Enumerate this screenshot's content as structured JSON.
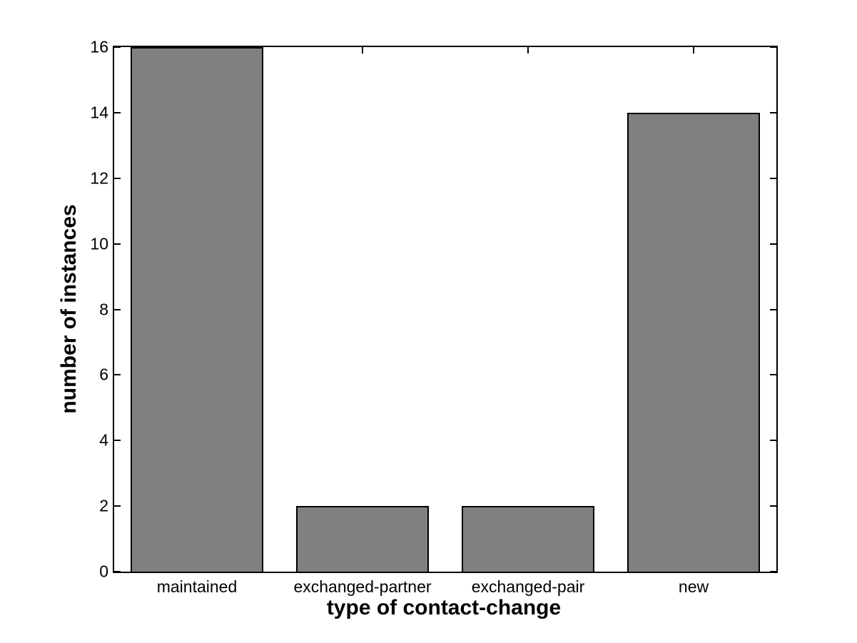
{
  "chart_data": {
    "type": "bar",
    "title": "",
    "xlabel": "type of contact-change",
    "ylabel": "number of instances",
    "categories": [
      "maintained",
      "exchanged-partner",
      "exchanged-pair",
      "new"
    ],
    "values": [
      16,
      2,
      2,
      14
    ],
    "ylim": [
      0,
      16
    ],
    "yticks": [
      0,
      2,
      4,
      6,
      8,
      10,
      12,
      14,
      16
    ],
    "bar_width_fraction": 0.8,
    "grid": "off",
    "legend": "none",
    "colors": {
      "bar_fill": "#808080",
      "bar_edge": "#000000",
      "axis": "#000000",
      "background": "#ffffff",
      "text": "#000000"
    }
  }
}
